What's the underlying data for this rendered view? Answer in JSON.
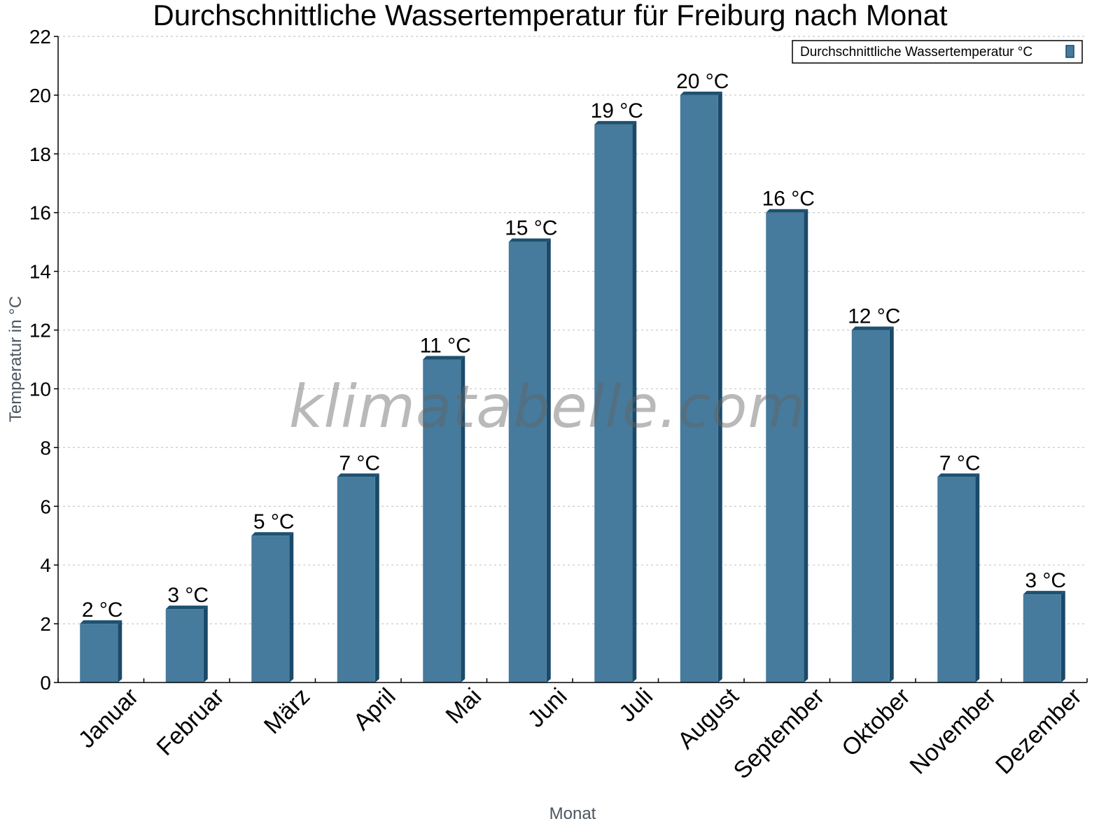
{
  "title": "Durchschnittliche Wassertemperatur für Freiburg nach Monat",
  "legend": {
    "label": "Durchschnittliche Wassertemperatur °C",
    "color": "#467b9d"
  },
  "watermark": "klimatabelle.com",
  "colors": {
    "bar_front": "#467b9d",
    "bar_side": "#1a4a6a",
    "bar_top": "#1e5070",
    "grid": "#c8c8c8",
    "axis": "#000000"
  },
  "chart_data": {
    "type": "bar",
    "title": "Durchschnittliche Wassertemperatur für Freiburg nach Monat",
    "xlabel": "Monat",
    "ylabel": "Temperatur in °C",
    "ylim": [
      0,
      22
    ],
    "yticks": [
      0,
      2,
      4,
      6,
      8,
      10,
      12,
      14,
      16,
      18,
      20,
      22
    ],
    "grid": true,
    "legend_position": "top-right",
    "categories": [
      "Januar",
      "Februar",
      "März",
      "April",
      "Mai",
      "Juni",
      "Juli",
      "August",
      "September",
      "Oktober",
      "November",
      "Dezember"
    ],
    "series": [
      {
        "name": "Durchschnittliche Wassertemperatur °C",
        "values": [
          2,
          2.5,
          5,
          7,
          11,
          15,
          19,
          20,
          16,
          12,
          7,
          3
        ],
        "labels": [
          "2 °C",
          "3 °C",
          "5 °C",
          "7 °C",
          "11 °C",
          "15 °C",
          "19 °C",
          "20 °C",
          "16 °C",
          "12 °C",
          "7 °C",
          "3 °C"
        ]
      }
    ]
  }
}
